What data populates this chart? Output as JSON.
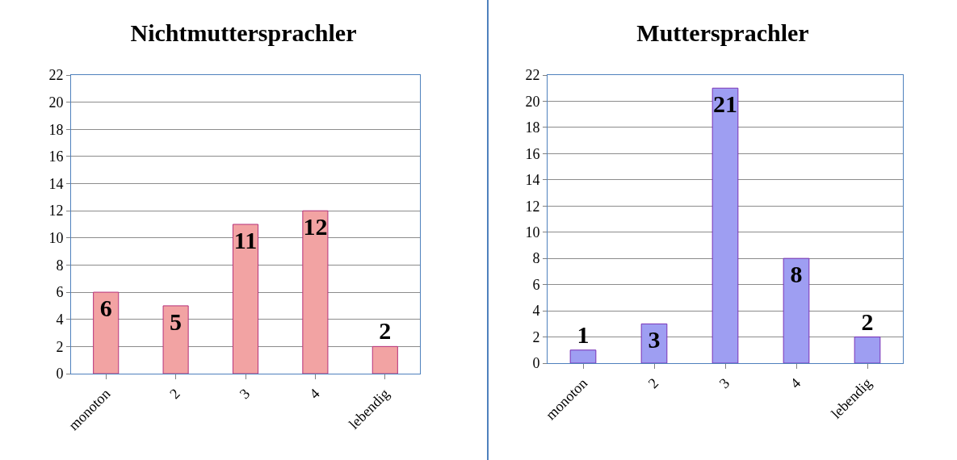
{
  "chart_data": [
    {
      "type": "bar",
      "title": "Nichtmuttersprachler",
      "categories": [
        "monoton",
        "2",
        "3",
        "4",
        "lebendig"
      ],
      "values": [
        6,
        5,
        11,
        12,
        2
      ],
      "color": "#f2a3a3",
      "ylim": [
        0,
        22
      ],
      "yticks": [
        0,
        2,
        4,
        6,
        8,
        10,
        12,
        14,
        16,
        18,
        20,
        22
      ],
      "grid": "y",
      "data_labels": true
    },
    {
      "type": "bar",
      "title": "Muttersprachler",
      "categories": [
        "monoton",
        "2",
        "3",
        "4",
        "lebendig"
      ],
      "values": [
        1,
        3,
        21,
        8,
        2
      ],
      "color": "#9e9ef2",
      "ylim": [
        0,
        22
      ],
      "yticks": [
        0,
        2,
        4,
        6,
        8,
        10,
        12,
        14,
        16,
        18,
        20,
        22
      ],
      "grid": "y",
      "data_labels": true
    }
  ]
}
